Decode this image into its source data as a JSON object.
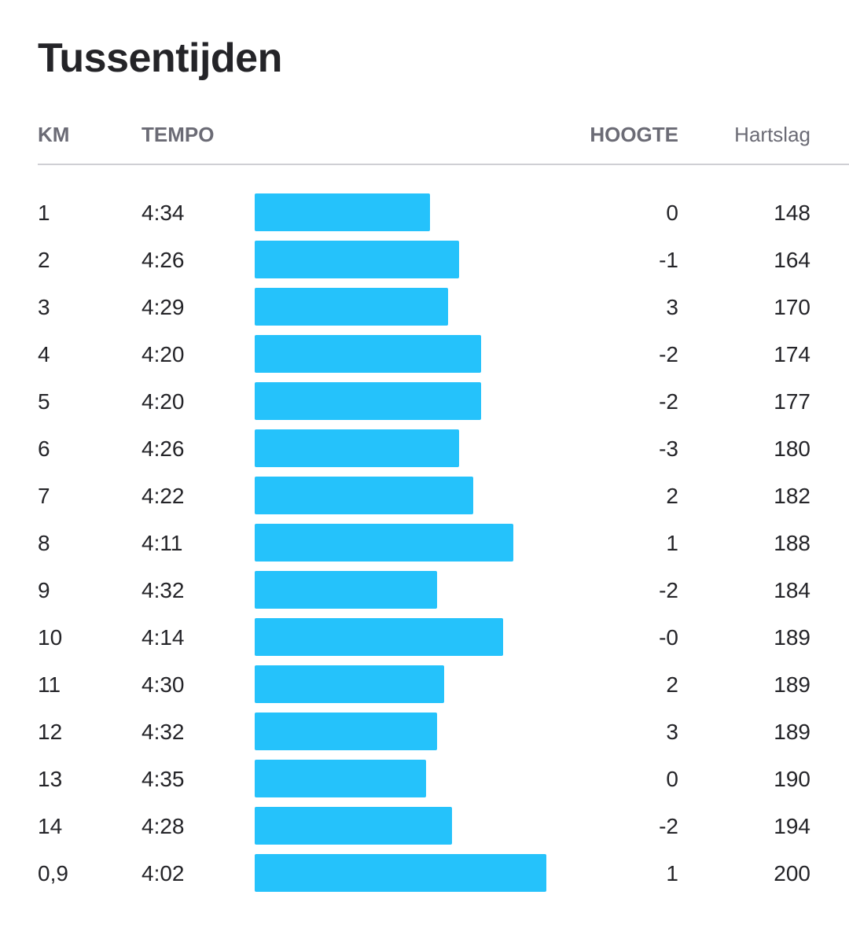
{
  "header": {
    "title": "Tussentijden"
  },
  "table": {
    "columns": [
      "KM",
      "TEMPO",
      "HOOGTE",
      "Hartslag"
    ],
    "rows": [
      {
        "km": "1",
        "tempo": "4:34",
        "hoogte": "0",
        "hartslag": "148"
      },
      {
        "km": "2",
        "tempo": "4:26",
        "hoogte": "-1",
        "hartslag": "164"
      },
      {
        "km": "3",
        "tempo": "4:29",
        "hoogte": "3",
        "hartslag": "170"
      },
      {
        "km": "4",
        "tempo": "4:20",
        "hoogte": "-2",
        "hartslag": "174"
      },
      {
        "km": "5",
        "tempo": "4:20",
        "hoogte": "-2",
        "hartslag": "177"
      },
      {
        "km": "6",
        "tempo": "4:26",
        "hoogte": "-3",
        "hartslag": "180"
      },
      {
        "km": "7",
        "tempo": "4:22",
        "hoogte": "2",
        "hartslag": "182"
      },
      {
        "km": "8",
        "tempo": "4:11",
        "hoogte": "1",
        "hartslag": "188"
      },
      {
        "km": "9",
        "tempo": "4:32",
        "hoogte": "-2",
        "hartslag": "184"
      },
      {
        "km": "10",
        "tempo": "4:14",
        "hoogte": "-0",
        "hartslag": "189"
      },
      {
        "km": "11",
        "tempo": "4:30",
        "hoogte": "2",
        "hartslag": "189"
      },
      {
        "km": "12",
        "tempo": "4:32",
        "hoogte": "3",
        "hartslag": "189"
      },
      {
        "km": "13",
        "tempo": "4:35",
        "hoogte": "0",
        "hartslag": "190"
      },
      {
        "km": "14",
        "tempo": "4:28",
        "hoogte": "-2",
        "hartslag": "194"
      },
      {
        "km": "0,9",
        "tempo": "4:02",
        "hoogte": "1",
        "hartslag": "200"
      }
    ]
  }
}
